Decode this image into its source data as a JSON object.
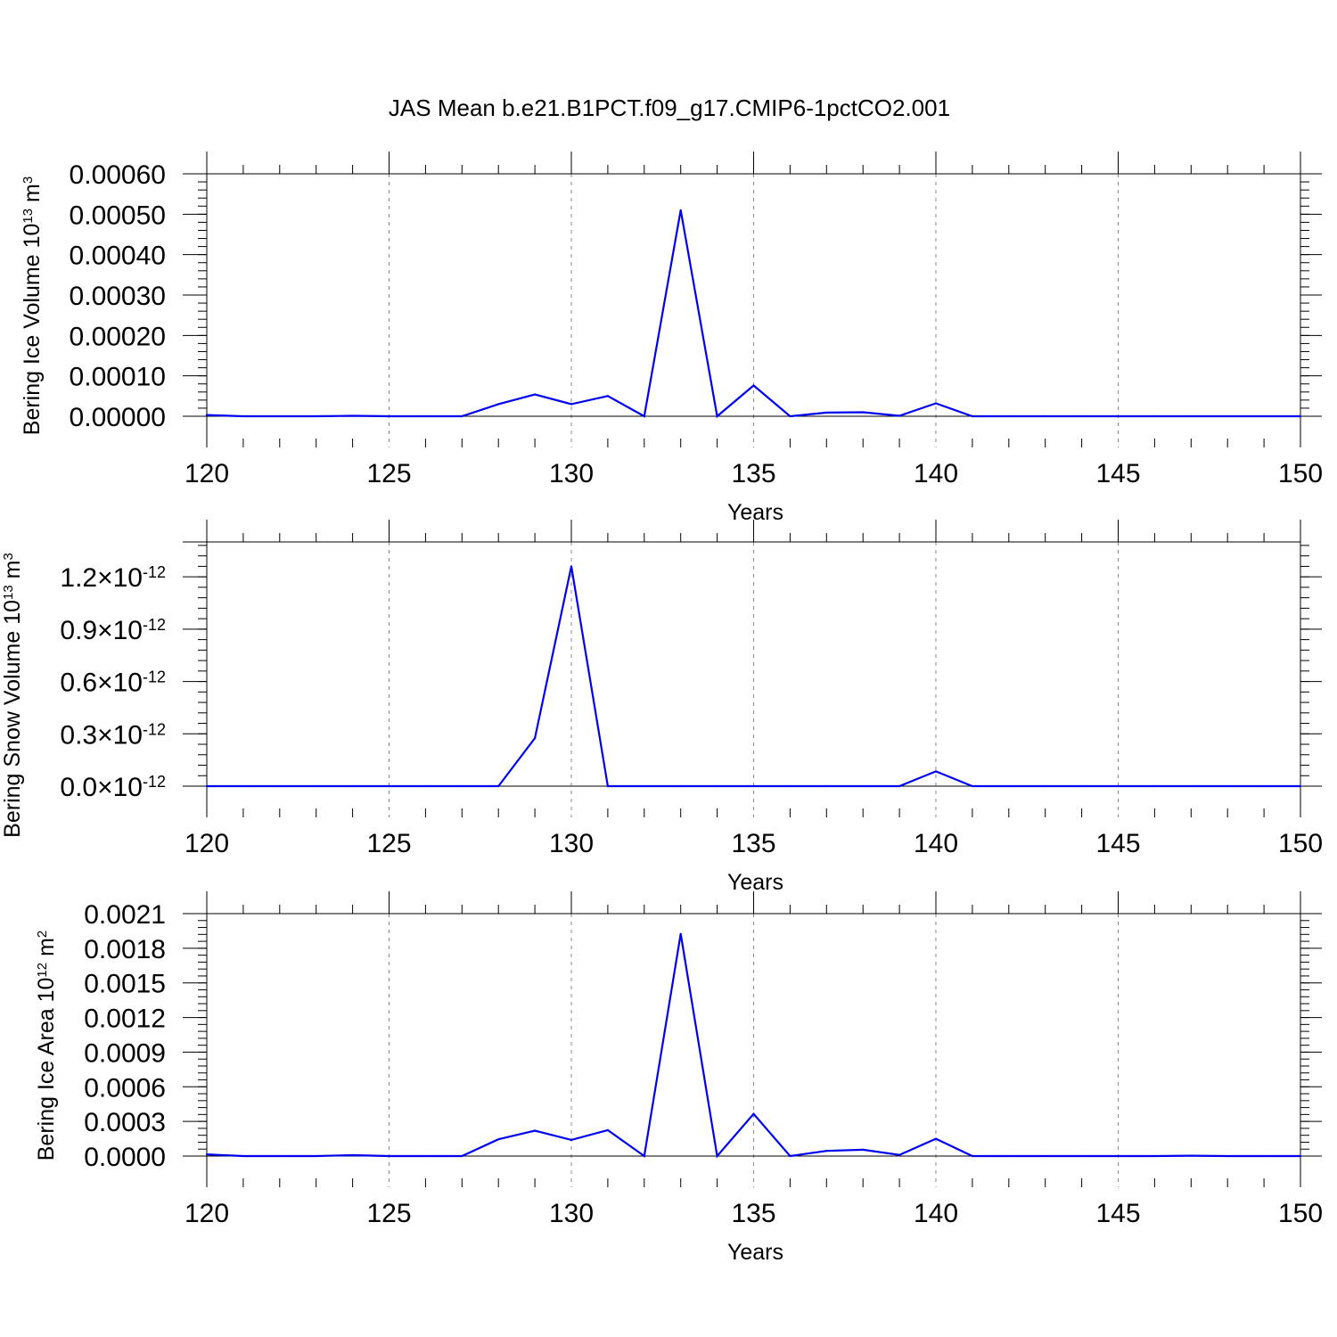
{
  "title": "JAS Mean b.e21.B1PCT.f09_g17.CMIP6-1pctCO2.001",
  "colors": {
    "series": "#0000ee",
    "grid": "#888888",
    "axis": "#000000"
  },
  "chart_data": [
    {
      "type": "line",
      "xlabel": "Years",
      "ylabel": {
        "text": "Bering Ice Volume 10",
        "sup": "13",
        "unit": " m",
        "unit_sup": "3"
      },
      "xlim": [
        120,
        150
      ],
      "ylim": [
        0,
        0.0006
      ],
      "xticks": [
        120,
        125,
        130,
        135,
        140,
        145,
        150
      ],
      "yticks": [
        0,
        0.0001,
        0.0002,
        0.0003,
        0.0004,
        0.0005,
        0.0006
      ],
      "yticklabels": [
        "0.00000",
        "0.00010",
        "0.00020",
        "0.00030",
        "0.00040",
        "0.00050",
        "0.00060"
      ],
      "grid_x": true,
      "x": [
        120,
        121,
        122,
        123,
        124,
        125,
        126,
        127,
        128,
        129,
        130,
        131,
        132,
        133,
        134,
        135,
        136,
        137,
        138,
        139,
        140,
        141,
        142,
        143,
        144,
        145,
        146,
        147,
        148,
        149,
        150
      ],
      "series": [
        {
          "values": [
            3e-06,
            0,
            0,
            0,
            1e-06,
            0,
            0,
            0,
            3e-05,
            5.4e-05,
            3e-05,
            5e-05,
            0,
            0.00051,
            0,
            7.6e-05,
            0,
            9e-06,
            1e-05,
            1e-06,
            3.2e-05,
            0,
            0,
            0,
            0,
            0,
            0,
            0,
            0,
            0,
            0
          ]
        }
      ]
    },
    {
      "type": "line",
      "xlabel": "Years",
      "ylabel": {
        "text": "Bering Snow Volume 10",
        "sup": "13",
        "unit": " m",
        "unit_sup": "3"
      },
      "xlim": [
        120,
        150
      ],
      "ylim": [
        0,
        1.4e-12
      ],
      "xticks": [
        120,
        125,
        130,
        135,
        140,
        145,
        150
      ],
      "yticks": [
        0,
        3e-13,
        6e-13,
        9e-13,
        1.2e-12
      ],
      "yticklabels": [
        {
          "mant": "0.0",
          "exp": "-12"
        },
        {
          "mant": "0.3",
          "exp": "-12"
        },
        {
          "mant": "0.6",
          "exp": "-12"
        },
        {
          "mant": "0.9",
          "exp": "-12"
        },
        {
          "mant": "1.2",
          "exp": "-12"
        }
      ],
      "times_sign": "×10",
      "grid_x": true,
      "x": [
        120,
        121,
        122,
        123,
        124,
        125,
        126,
        127,
        128,
        129,
        130,
        131,
        132,
        133,
        134,
        135,
        136,
        137,
        138,
        139,
        140,
        141,
        142,
        143,
        144,
        145,
        146,
        147,
        148,
        149,
        150
      ],
      "series": [
        {
          "values": [
            0,
            0,
            0,
            0,
            0,
            0,
            0,
            0,
            0,
            2.75e-13,
            1.26e-12,
            0,
            0,
            0,
            0,
            0,
            0,
            0,
            0,
            0,
            8.5e-14,
            0,
            0,
            0,
            0,
            0,
            0,
            0,
            0,
            0,
            0
          ]
        }
      ]
    },
    {
      "type": "line",
      "xlabel": "Years",
      "ylabel": {
        "text": "Bering Ice Area 10",
        "sup": "12",
        "unit": " m",
        "unit_sup": "2"
      },
      "xlim": [
        120,
        150
      ],
      "ylim": [
        0,
        0.0021
      ],
      "xticks": [
        120,
        125,
        130,
        135,
        140,
        145,
        150
      ],
      "yticks": [
        0,
        0.0003,
        0.0006,
        0.0009,
        0.0012,
        0.0015,
        0.0018,
        0.0021
      ],
      "yticklabels": [
        "0.0000",
        "0.0003",
        "0.0006",
        "0.0009",
        "0.0012",
        "0.0015",
        "0.0018",
        "0.0021"
      ],
      "grid_x": true,
      "x": [
        120,
        121,
        122,
        123,
        124,
        125,
        126,
        127,
        128,
        129,
        130,
        131,
        132,
        133,
        134,
        135,
        136,
        137,
        138,
        139,
        140,
        141,
        142,
        143,
        144,
        145,
        146,
        147,
        148,
        149,
        150
      ],
      "series": [
        {
          "values": [
            1.5e-05,
            0,
            0,
            0,
            8e-06,
            0,
            0,
            0,
            0.000145,
            0.00022,
            0.00014,
            0.000225,
            0,
            0.001925,
            0,
            0.000365,
            0,
            4.5e-05,
            5.5e-05,
            1e-05,
            0.00015,
            0,
            0,
            0,
            0,
            0,
            0,
            3e-06,
            0,
            0,
            0
          ]
        }
      ]
    }
  ]
}
